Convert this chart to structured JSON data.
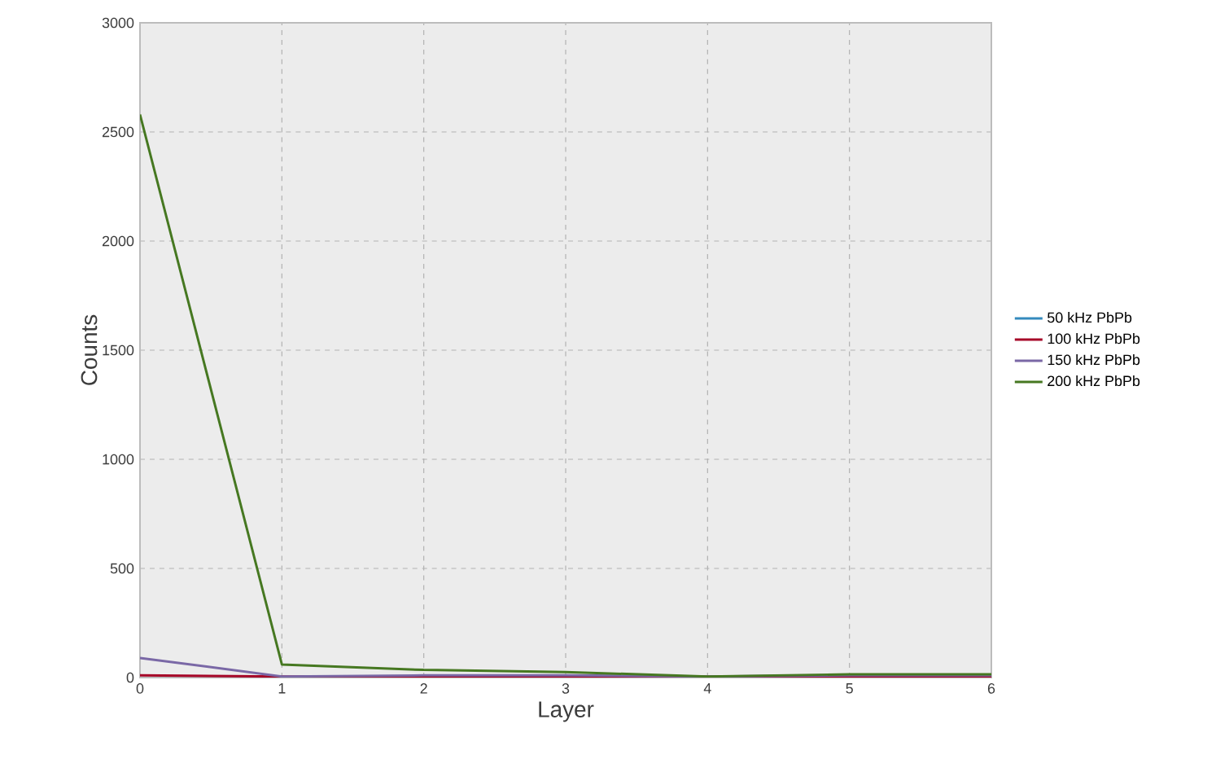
{
  "chart_data": {
    "type": "line",
    "xlabel": "Layer",
    "ylabel": "Counts",
    "x": [
      0,
      1,
      2,
      3,
      4,
      5,
      6
    ],
    "series": [
      {
        "name": "50 kHz PbPb",
        "color": "#348abd",
        "values": [
          null,
          null,
          null,
          null,
          null,
          null,
          null
        ]
      },
      {
        "name": "100 kHz PbPb",
        "color": "#a60628",
        "values": [
          10,
          5,
          5,
          5,
          5,
          5,
          5
        ]
      },
      {
        "name": "150 kHz PbPb",
        "color": "#7a68a6",
        "values": [
          90,
          5,
          10,
          10,
          5,
          10,
          10
        ]
      },
      {
        "name": "200 kHz PbPb",
        "color": "#467821",
        "values": [
          2580,
          60,
          35,
          25,
          5,
          15,
          15
        ]
      }
    ],
    "xlim": [
      0,
      6
    ],
    "xticks": [
      0,
      1,
      2,
      3,
      4,
      5,
      6
    ],
    "ylim": [
      0,
      3000
    ],
    "yticks": [
      0,
      500,
      1000,
      1500,
      2000,
      2500,
      3000
    ],
    "grid": true,
    "legend": "right",
    "marker": "none",
    "line_style": "solid"
  }
}
